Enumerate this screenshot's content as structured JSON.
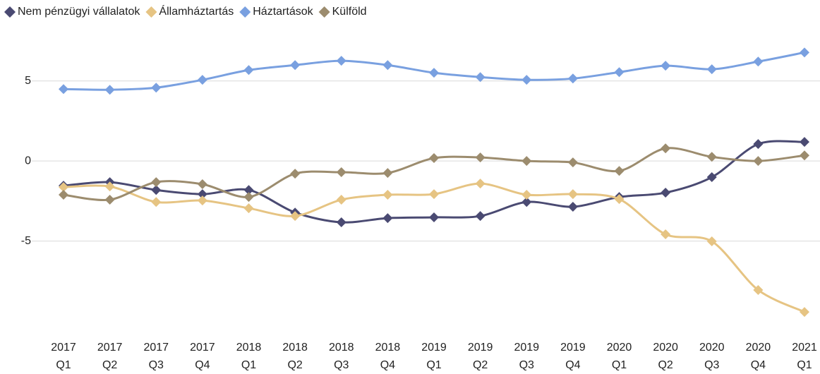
{
  "chart_data": {
    "type": "line",
    "categories": [
      [
        "2017",
        "Q1"
      ],
      [
        "2017",
        "Q2"
      ],
      [
        "2017",
        "Q3"
      ],
      [
        "2017",
        "Q4"
      ],
      [
        "2018",
        "Q1"
      ],
      [
        "2018",
        "Q2"
      ],
      [
        "2018",
        "Q3"
      ],
      [
        "2018",
        "Q4"
      ],
      [
        "2019",
        "Q1"
      ],
      [
        "2019",
        "Q2"
      ],
      [
        "2019",
        "Q3"
      ],
      [
        "2019",
        "Q4"
      ],
      [
        "2020",
        "Q1"
      ],
      [
        "2020",
        "Q2"
      ],
      [
        "2020",
        "Q3"
      ],
      [
        "2020",
        "Q4"
      ],
      [
        "2021",
        "Q1"
      ]
    ],
    "series": [
      {
        "name": "Nem pénzügyi vállalatok",
        "color": "#4a4a72",
        "values": [
          -1.54,
          -1.32,
          -1.81,
          -2.07,
          -1.81,
          -3.22,
          -3.83,
          -3.57,
          -3.52,
          -3.44,
          -2.56,
          -2.86,
          -2.25,
          -1.98,
          -1.01,
          1.06,
          1.19
        ]
      },
      {
        "name": "Államháztartás",
        "color": "#e6c483",
        "values": [
          -1.63,
          -1.59,
          -2.56,
          -2.47,
          -2.95,
          -3.44,
          -2.42,
          -2.11,
          -2.07,
          -1.41,
          -2.11,
          -2.07,
          -2.38,
          -4.58,
          -5.02,
          -8.06,
          -9.43
        ]
      },
      {
        "name": "Háztartások",
        "color": "#79a0e0",
        "values": [
          4.49,
          4.45,
          4.58,
          5.07,
          5.68,
          5.99,
          6.26,
          5.99,
          5.51,
          5.24,
          5.07,
          5.15,
          5.55,
          5.95,
          5.73,
          6.21,
          6.78
        ]
      },
      {
        "name": "Külföld",
        "color": "#9c8c6e",
        "values": [
          -2.11,
          -2.42,
          -1.32,
          -1.45,
          -2.25,
          -0.79,
          -0.7,
          -0.75,
          0.18,
          0.22,
          0,
          -0.09,
          -0.62,
          0.79,
          0.26,
          0,
          0.35
        ]
      }
    ],
    "ylim": [
      -10,
      7.5
    ],
    "yticks": [
      -5,
      0,
      5
    ],
    "grid": true,
    "legend": "top-left"
  }
}
